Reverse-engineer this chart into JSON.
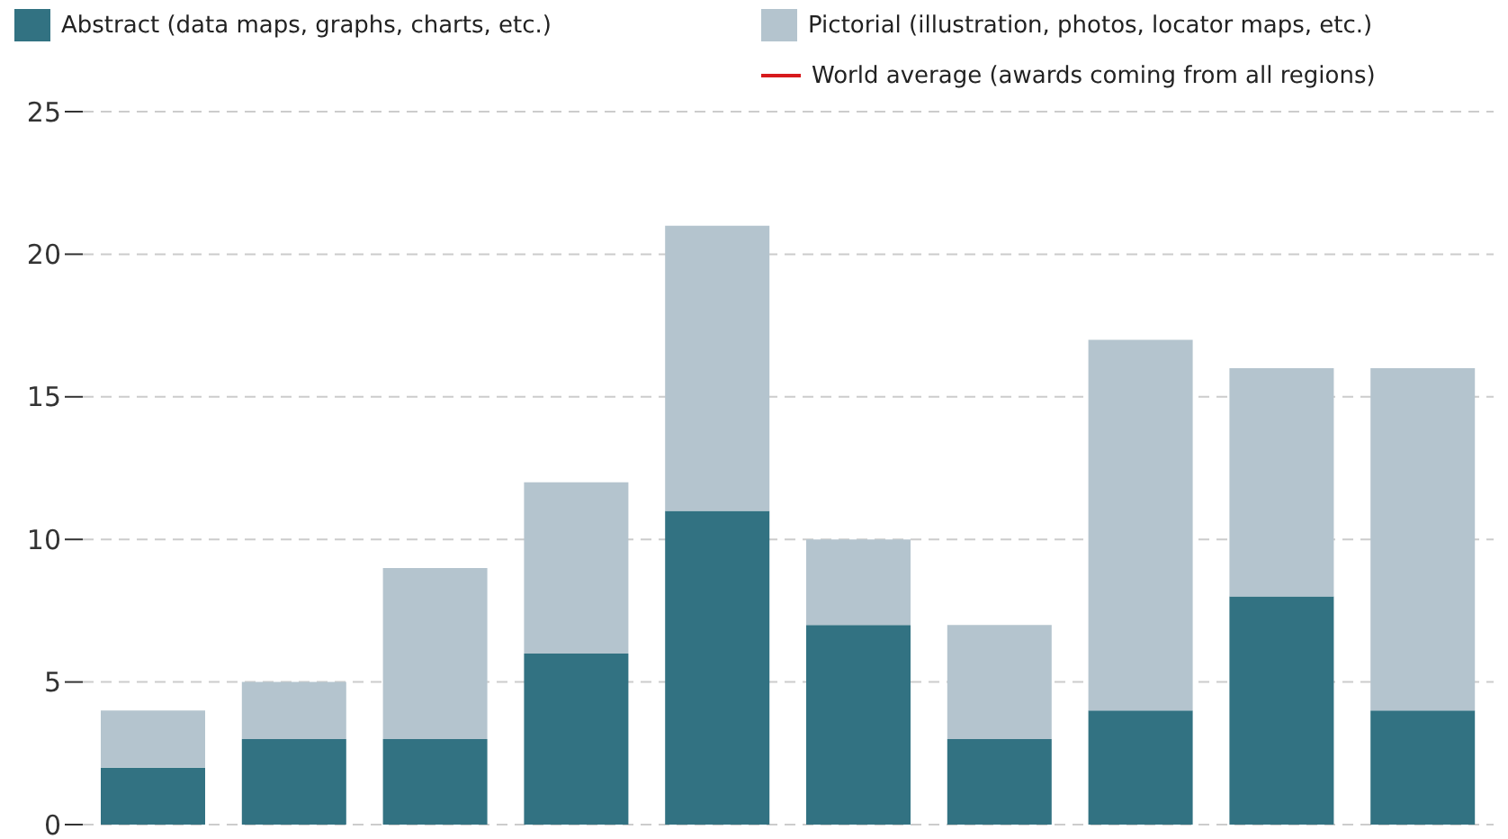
{
  "chart_data": {
    "type": "bar",
    "stacked": true,
    "categories": [
      null,
      null,
      null,
      null,
      null,
      null,
      null,
      null,
      null,
      null
    ],
    "series": [
      {
        "name": "Abstract (data maps, graphs, charts, etc.)",
        "color": "#327282",
        "values": [
          2,
          3,
          3,
          6,
          11,
          7,
          3,
          4,
          8,
          4
        ]
      },
      {
        "name": "Pictorial (illustration, photos, locator maps, etc.)",
        "color": "#b4c4ce",
        "values": [
          2,
          2,
          6,
          6,
          10,
          3,
          4,
          13,
          8,
          12
        ]
      },
      {
        "name": "World average (awards coming from all regions)",
        "type": "line",
        "color": "#d7191c",
        "values": [
          null,
          null,
          null,
          null,
          null,
          null,
          null,
          null,
          null,
          null
        ]
      }
    ],
    "ylim": [
      0,
      25
    ],
    "yticks": [
      0,
      5,
      10,
      15,
      20,
      25
    ],
    "grid": "y",
    "legend": "top"
  }
}
